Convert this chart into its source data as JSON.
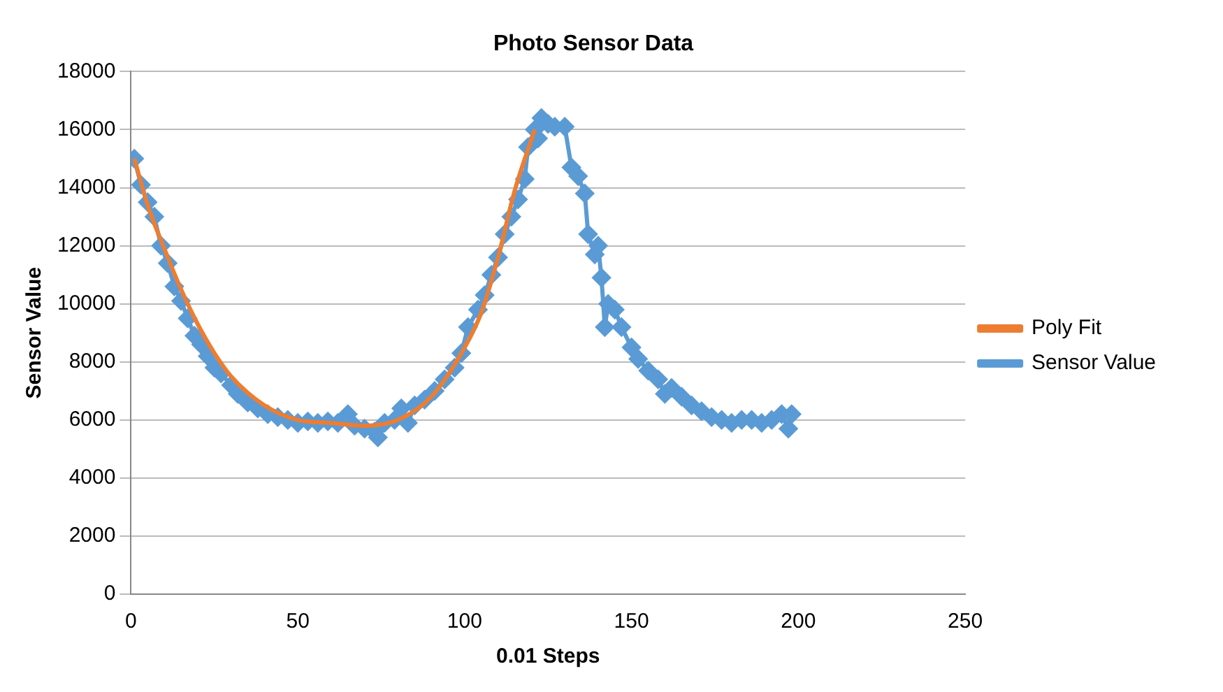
{
  "chart_data": {
    "type": "line",
    "title": "Photo Sensor Data",
    "xlabel": "0.01 Steps",
    "ylabel": "Sensor Value",
    "xlim": [
      0,
      250
    ],
    "xticks": [
      0,
      50,
      100,
      150,
      200,
      250
    ],
    "ylim": [
      0,
      18000
    ],
    "yticks": [
      0,
      2000,
      4000,
      6000,
      8000,
      10000,
      12000,
      14000,
      16000,
      18000
    ],
    "grid": "y",
    "legend": "right",
    "series": [
      {
        "name": "Sensor Value",
        "color": "#5b9bd5",
        "marker": "diamond",
        "x": [
          1,
          3,
          5,
          7,
          9,
          11,
          13,
          15,
          17,
          19,
          21,
          23,
          25,
          27,
          30,
          32,
          35,
          38,
          41,
          44,
          47,
          50,
          53,
          56,
          59,
          62,
          65,
          67,
          70,
          73,
          74,
          76,
          79,
          81,
          83,
          85,
          88,
          91,
          94,
          97,
          99,
          101,
          104,
          106,
          108,
          110,
          112,
          114,
          116,
          118,
          119,
          121,
          122,
          123,
          125,
          127,
          130,
          132,
          134,
          136,
          137,
          139,
          140,
          141,
          142,
          143,
          145,
          147,
          150,
          152,
          155,
          158,
          160,
          162,
          165,
          168,
          171,
          174,
          177,
          180,
          183,
          186,
          189,
          192,
          195,
          197,
          198
        ],
        "values": [
          15000,
          14100,
          13500,
          13000,
          12000,
          11400,
          10600,
          10100,
          9500,
          8900,
          8600,
          8200,
          7800,
          7600,
          7200,
          6900,
          6600,
          6400,
          6200,
          6100,
          6000,
          5900,
          5950,
          5900,
          5950,
          5900,
          6200,
          5800,
          5700,
          5600,
          5400,
          5900,
          6000,
          6400,
          5900,
          6500,
          6700,
          7000,
          7400,
          7800,
          8300,
          9200,
          9800,
          10300,
          11000,
          11600,
          12400,
          13000,
          13600,
          14300,
          15400,
          16000,
          15700,
          16400,
          16200,
          16100,
          16100,
          14700,
          14400,
          13800,
          12400,
          11700,
          12000,
          10900,
          9200,
          10000,
          9800,
          9200,
          8500,
          8100,
          7700,
          7400,
          6900,
          7100,
          6800,
          6500,
          6300,
          6100,
          6000,
          5900,
          6000,
          6000,
          5900,
          6000,
          6200,
          5700,
          6200
        ]
      },
      {
        "name": "Poly Fit",
        "color": "#ed7d31",
        "marker": "none",
        "x": [
          1,
          5,
          10,
          15,
          20,
          25,
          30,
          40,
          50,
          60,
          70,
          80,
          90,
          100,
          105,
          110,
          115,
          121
        ],
        "values": [
          15000,
          13400,
          11900,
          10500,
          9300,
          8300,
          7500,
          6500,
          6000,
          5900,
          5800,
          6000,
          6800,
          8500,
          9700,
          11600,
          13900,
          16000
        ]
      }
    ]
  }
}
